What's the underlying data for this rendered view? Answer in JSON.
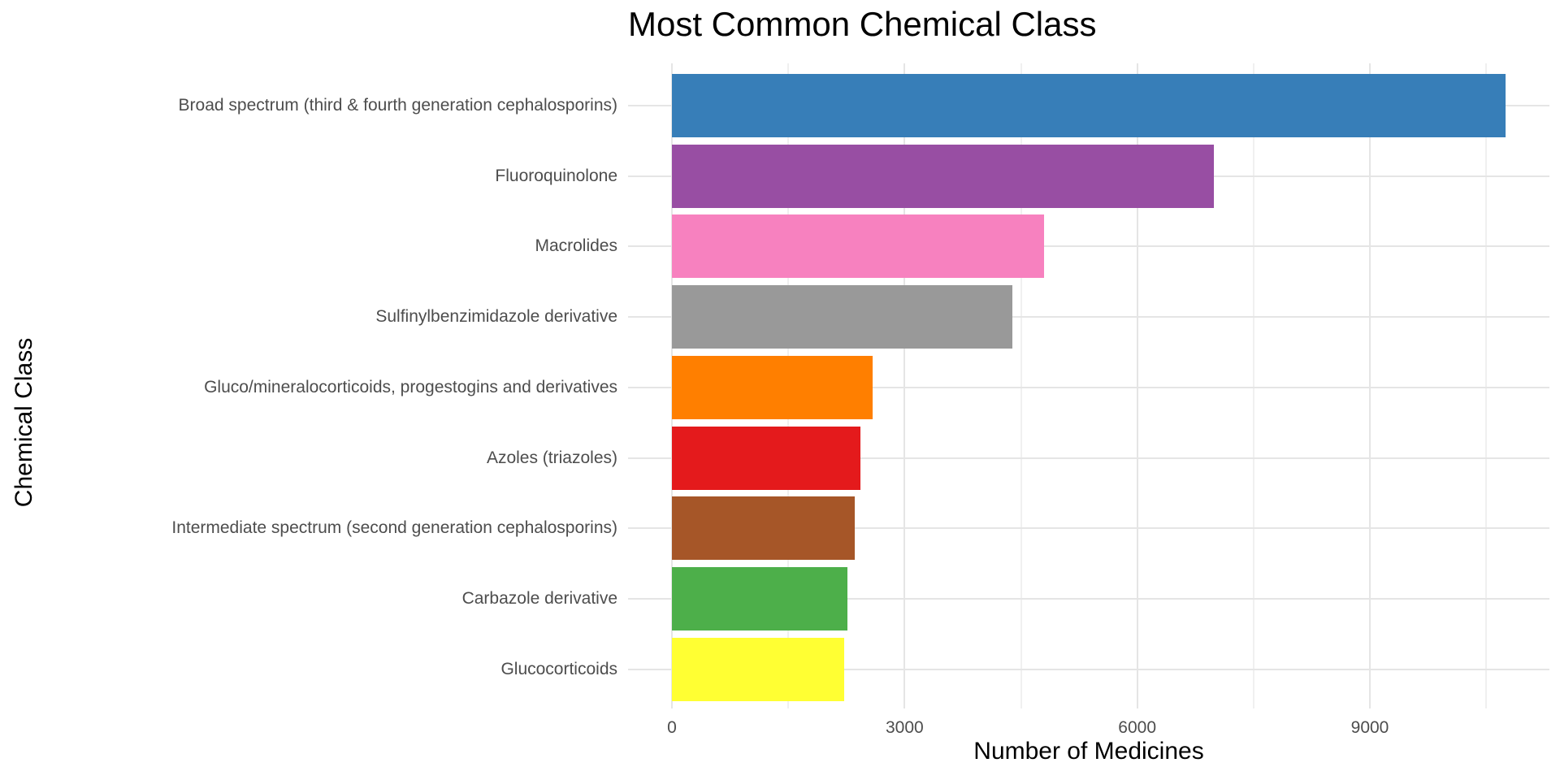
{
  "chart_data": {
    "type": "bar",
    "orientation": "horizontal",
    "title": "Most Common Chemical Class",
    "xlabel": "Number of Medicines",
    "ylabel": "Chemical Class",
    "categories": [
      "Broad spectrum (third & fourth generation cephalosporins)",
      "Fluoroquinolone",
      "Macrolides",
      "Sulfinylbenzimidazole derivative",
      "Gluco/mineralocorticoids, progestogins and derivatives",
      "Azoles (triazoles)",
      "Intermediate spectrum (second generation cephalosporins)",
      "Carbazole derivative",
      "Glucocorticoids"
    ],
    "values": [
      10750,
      6990,
      4800,
      4390,
      2590,
      2430,
      2360,
      2260,
      2220
    ],
    "bar_colors": [
      "#377EB8",
      "#984EA3",
      "#F781BF",
      "#999999",
      "#FF7F00",
      "#E41A1C",
      "#A65628",
      "#4DAF4A",
      "#FFFF33"
    ],
    "x_ticks": [
      0,
      3000,
      6000,
      9000
    ],
    "x_tick_labels": [
      "0",
      "3000",
      "6000",
      "9000"
    ],
    "x_minor_gridlines": [
      1500,
      4500,
      7500,
      10500
    ],
    "xlim": [
      0,
      11300
    ],
    "grid": "major+minor",
    "legend": "none",
    "colors": {
      "background": "#FFFFFF",
      "gridline_major": "#E5E5E5",
      "gridline_minor": "#F0F0F0",
      "axis_text": "#4D4D4D",
      "axis_title": "#000000",
      "title": "#000000"
    }
  }
}
